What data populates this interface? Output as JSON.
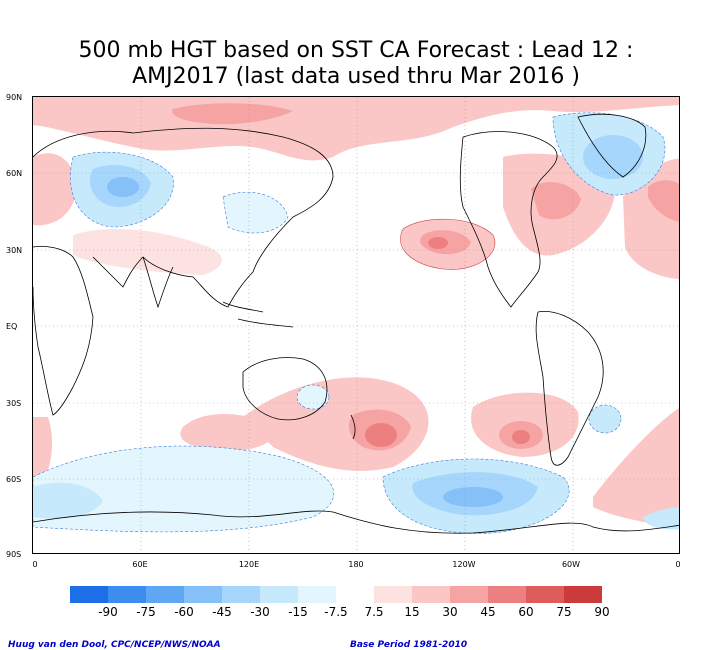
{
  "title": {
    "line1": "500 mb HGT based on SST CA Forecast : Lead 12 :",
    "line2": "AMJ2017 (last data used thru Mar 2016 )"
  },
  "map": {
    "lat_labels": [
      "90N",
      "60N",
      "30N",
      "EQ",
      "30S",
      "60S",
      "90S"
    ],
    "lon_labels": [
      "0",
      "60E",
      "120E",
      "180",
      "120W",
      "60W",
      "0"
    ]
  },
  "colorbar": {
    "labels": [
      "-90",
      "-75",
      "-60",
      "-45",
      "-30",
      "-15",
      "-7.5",
      "7.5",
      "15",
      "30",
      "45",
      "60",
      "75",
      "90"
    ],
    "negative_colors": [
      "#1c6fe6",
      "#3b8ef0",
      "#5fa6f5",
      "#86c0f8",
      "#a6d6fb",
      "#c6e9fc",
      "#e3f6fe"
    ],
    "positive_colors": [
      "#fde2e2",
      "#fbc6c6",
      "#f5a3a3",
      "#ec8080",
      "#df5c5c",
      "#cc3b3b",
      "#b32424"
    ]
  },
  "credits": {
    "left": "Huug van den Dool, CPC/NCEP/NWS/NOAA",
    "right": "Base Period 1981-2010"
  }
}
